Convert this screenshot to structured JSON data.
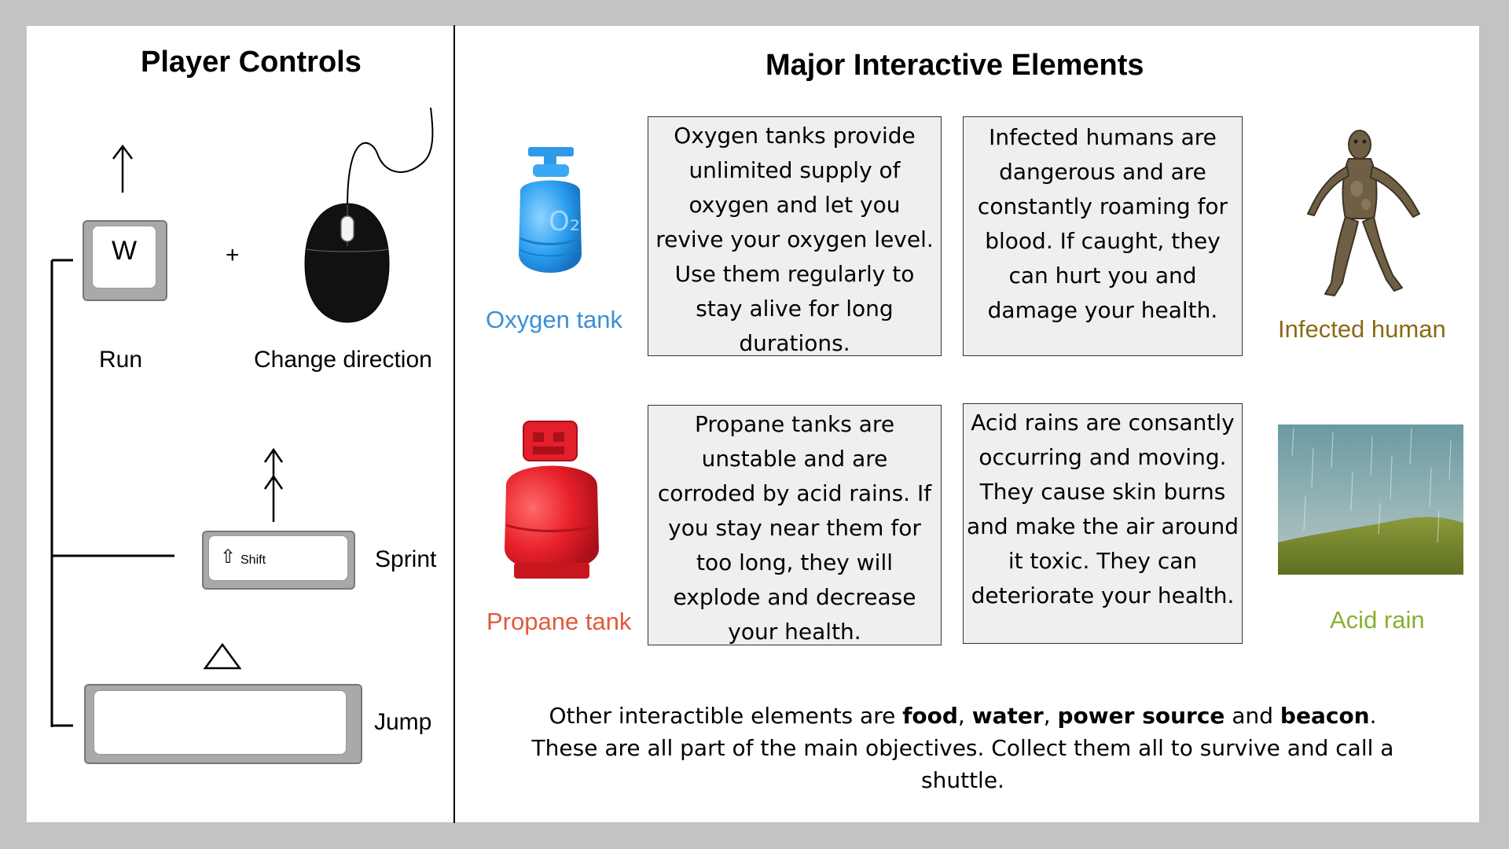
{
  "left_panel": {
    "title": "Player Controls",
    "controls": [
      {
        "key": "W",
        "action": "Run"
      },
      {
        "key": "mouse",
        "action": "Change direction"
      },
      {
        "key": "Shift",
        "action": "Sprint"
      },
      {
        "key": "space",
        "action": "Jump"
      }
    ],
    "plus_sign": "+"
  },
  "right_panel": {
    "title": "Major Interactive Elements",
    "elements": [
      {
        "label": "Oxygen tank",
        "color": "#3a8fd6",
        "description": "Oxygen tanks provide unlimited supply of oxygen and let you revive your oxygen level. Use them regularly to stay alive for long durations."
      },
      {
        "label": "Infected human",
        "color": "#8a6a14",
        "description": "Infected humans are dangerous and are constantly roaming for blood. If caught, they can hurt you and damage your health."
      },
      {
        "label": "Propane tank",
        "color": "#e05a3a",
        "description": "Propane tanks are unstable and are corroded by acid rains. If you stay near them for too long, they will explode and decrease your health."
      },
      {
        "label": "Acid rain",
        "color": "#8ab030",
        "description": "Acid rains are consantly occurring and moving. They cause skin burns and make the air around it toxic. They can deteriorate your health."
      }
    ],
    "footer": {
      "prefix": "Other interactible elements are ",
      "item1": "food",
      "sep1": ", ",
      "item2": "water",
      "sep2": ", ",
      "item3": "power source",
      "sep3": " and ",
      "item4": "beacon",
      "suffix": ". These are all part of the main objectives. Collect them all to survive and call a shuttle."
    }
  },
  "icons": {
    "oxygen_symbol": "O₂",
    "shift_arrow": "⇧"
  }
}
